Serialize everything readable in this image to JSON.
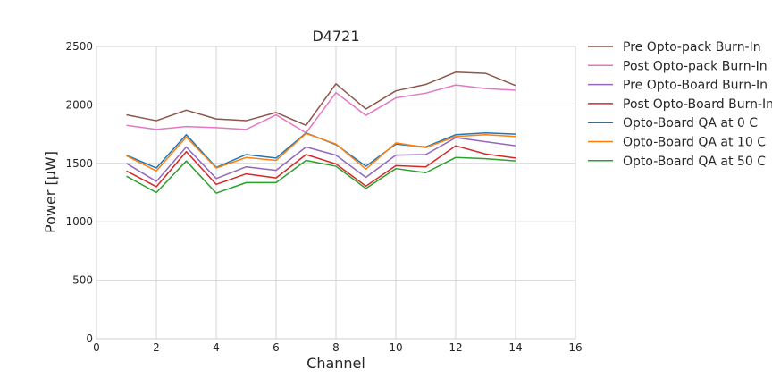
{
  "chart_data": {
    "type": "line",
    "title": "D4721",
    "xlabel": "Channel",
    "ylabel": "Power [μW]",
    "xlim": [
      0,
      16
    ],
    "ylim": [
      0,
      2500
    ],
    "xticks": [
      "0",
      "2",
      "4",
      "6",
      "8",
      "10",
      "12",
      "14",
      "16"
    ],
    "yticks": [
      "0",
      "500",
      "1000",
      "1500",
      "2000",
      "2500"
    ],
    "grid": true,
    "legend_position": "outside-right",
    "x": [
      1,
      2,
      3,
      4,
      5,
      6,
      7,
      8,
      9,
      10,
      11,
      12,
      13,
      14
    ],
    "series": [
      {
        "name": "Pre Opto-pack Burn-In",
        "color": "#8c564b",
        "values": [
          1915,
          1865,
          1955,
          1880,
          1865,
          1935,
          1825,
          2180,
          1965,
          2120,
          2175,
          2280,
          2270,
          2165
        ]
      },
      {
        "name": "Post Opto-pack Burn-In",
        "color": "#e377c2",
        "values": [
          1825,
          1790,
          1815,
          1805,
          1790,
          1915,
          1760,
          2105,
          1910,
          2060,
          2100,
          2170,
          2140,
          2125
        ]
      },
      {
        "name": "Pre Opto-Board Burn-In",
        "color": "#9467bd",
        "values": [
          1500,
          1345,
          1640,
          1370,
          1470,
          1440,
          1640,
          1570,
          1380,
          1570,
          1575,
          1720,
          1685,
          1650
        ]
      },
      {
        "name": "Post Opto-Board Burn-In",
        "color": "#d62728",
        "values": [
          1435,
          1300,
          1600,
          1320,
          1410,
          1375,
          1575,
          1495,
          1305,
          1480,
          1470,
          1650,
          1580,
          1545
        ]
      },
      {
        "name": "Opto-Board QA at 0 C",
        "color": "#1f77b4",
        "values": [
          1570,
          1460,
          1745,
          1465,
          1575,
          1545,
          1760,
          1660,
          1475,
          1665,
          1640,
          1745,
          1760,
          1750
        ]
      },
      {
        "name": "Opto-Board QA at 10 C",
        "color": "#ff7f0e",
        "values": [
          1565,
          1435,
          1725,
          1460,
          1550,
          1525,
          1755,
          1665,
          1450,
          1675,
          1635,
          1730,
          1745,
          1730
        ]
      },
      {
        "name": "Opto-Board QA at 50 C",
        "color": "#2ca02c",
        "values": [
          1390,
          1250,
          1520,
          1245,
          1335,
          1335,
          1525,
          1475,
          1285,
          1455,
          1420,
          1550,
          1540,
          1520
        ]
      }
    ]
  }
}
